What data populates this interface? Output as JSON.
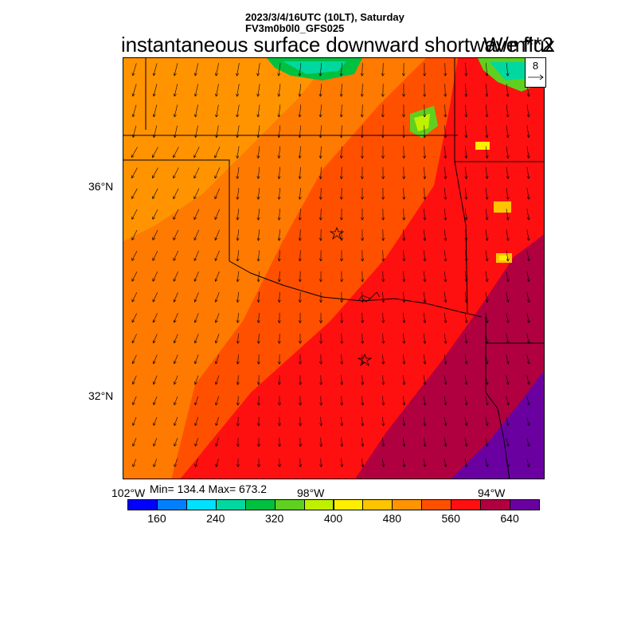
{
  "header": {
    "line1": "2023/3/4/16UTC (10LT), Saturday",
    "line2": "FV3m0b0l0_GFS025"
  },
  "title": "instantaneous surface downward shortwave flux",
  "units": "W/m**2",
  "map": {
    "lat_labels": [
      {
        "name": "lat-36",
        "text": "36°N"
      },
      {
        "name": "lat-32",
        "text": "32°N"
      }
    ],
    "lon_labels": [
      {
        "name": "lon-102",
        "text": "102°W"
      },
      {
        "name": "lon-98",
        "text": "98°W"
      },
      {
        "name": "lon-94",
        "text": "94°W"
      }
    ],
    "min_max": "Min= 134.4 Max= 673.2",
    "reference_vector": {
      "label": "8"
    },
    "markers": [
      "star",
      "star"
    ],
    "value_field": {
      "description_levels": [
        480,
        520,
        560,
        600,
        640
      ],
      "northwest_value": 500,
      "central_value": 540,
      "southeast_value": 620,
      "far_southeast_value": 660,
      "cloud_patches_value": [
        280,
        360,
        440
      ]
    }
  },
  "colorbar": {
    "colors": [
      "#0000ff",
      "#0080ff",
      "#00e0ff",
      "#00d8a0",
      "#00c040",
      "#60d020",
      "#c0f000",
      "#ffee00",
      "#ffc400",
      "#ff9400",
      "#ff5000",
      "#ff1010",
      "#b00040",
      "#6a00a0"
    ],
    "tick_labels": [
      "160",
      "240",
      "320",
      "400",
      "480",
      "560",
      "640"
    ]
  }
}
